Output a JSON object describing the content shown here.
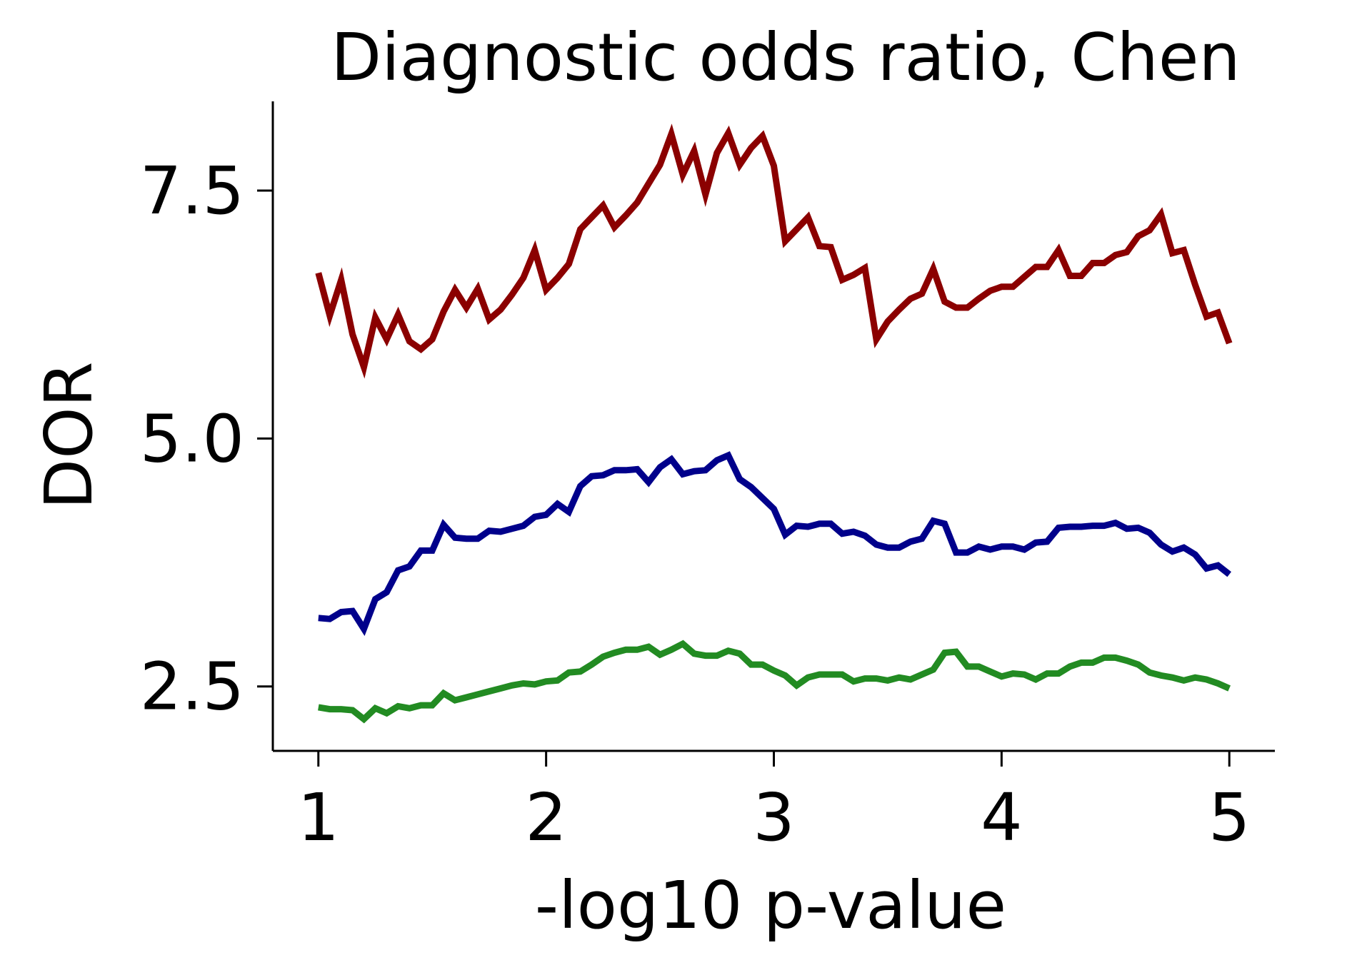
{
  "chart_data": {
    "type": "line",
    "title": "Diagnostic odds ratio, Chen",
    "xlabel": "-log10 p-value",
    "ylabel": "DOR",
    "xlim": [
      0.8,
      5.2
    ],
    "ylim": [
      1.85,
      8.4
    ],
    "xticks": [
      1,
      2,
      3,
      4,
      5
    ],
    "xtick_labels": [
      "1",
      "2",
      "3",
      "4",
      "5"
    ],
    "yticks": [
      2.5,
      5.0,
      7.5
    ],
    "ytick_labels": [
      "2.5",
      "5.0",
      "7.5"
    ],
    "grid": false,
    "legend": "none",
    "series": [
      {
        "color": "#8b0000",
        "points": [
          [
            1.0,
            6.67
          ],
          [
            1.05,
            6.24
          ],
          [
            1.1,
            6.6
          ],
          [
            1.15,
            6.05
          ],
          [
            1.2,
            5.72
          ],
          [
            1.25,
            6.22
          ],
          [
            1.3,
            6.0
          ],
          [
            1.35,
            6.25
          ],
          [
            1.4,
            5.98
          ],
          [
            1.45,
            5.9
          ],
          [
            1.5,
            6.0
          ],
          [
            1.55,
            6.28
          ],
          [
            1.6,
            6.5
          ],
          [
            1.65,
            6.32
          ],
          [
            1.7,
            6.51
          ],
          [
            1.75,
            6.2
          ],
          [
            1.8,
            6.3
          ],
          [
            1.85,
            6.45
          ],
          [
            1.9,
            6.62
          ],
          [
            1.95,
            6.9
          ],
          [
            2.0,
            6.5
          ],
          [
            2.05,
            6.62
          ],
          [
            2.1,
            6.76
          ],
          [
            2.15,
            7.11
          ],
          [
            2.2,
            7.23
          ],
          [
            2.25,
            7.35
          ],
          [
            2.3,
            7.13
          ],
          [
            2.35,
            7.25
          ],
          [
            2.4,
            7.38
          ],
          [
            2.45,
            7.57
          ],
          [
            2.5,
            7.76
          ],
          [
            2.55,
            8.07
          ],
          [
            2.6,
            7.66
          ],
          [
            2.65,
            7.9
          ],
          [
            2.7,
            7.46
          ],
          [
            2.75,
            7.88
          ],
          [
            2.8,
            8.08
          ],
          [
            2.85,
            7.76
          ],
          [
            2.9,
            7.93
          ],
          [
            2.95,
            8.05
          ],
          [
            3.0,
            7.75
          ],
          [
            3.05,
            6.99
          ],
          [
            3.1,
            7.11
          ],
          [
            3.15,
            7.23
          ],
          [
            3.2,
            6.94
          ],
          [
            3.25,
            6.93
          ],
          [
            3.3,
            6.6
          ],
          [
            3.35,
            6.65
          ],
          [
            3.4,
            6.72
          ],
          [
            3.45,
            6.0
          ],
          [
            3.5,
            6.18
          ],
          [
            3.55,
            6.3
          ],
          [
            3.6,
            6.41
          ],
          [
            3.65,
            6.46
          ],
          [
            3.7,
            6.71
          ],
          [
            3.75,
            6.38
          ],
          [
            3.8,
            6.32
          ],
          [
            3.85,
            6.32
          ],
          [
            3.9,
            6.41
          ],
          [
            3.95,
            6.49
          ],
          [
            4.0,
            6.53
          ],
          [
            4.05,
            6.53
          ],
          [
            4.1,
            6.63
          ],
          [
            4.15,
            6.73
          ],
          [
            4.2,
            6.73
          ],
          [
            4.25,
            6.9
          ],
          [
            4.3,
            6.64
          ],
          [
            4.35,
            6.64
          ],
          [
            4.4,
            6.77
          ],
          [
            4.45,
            6.77
          ],
          [
            4.5,
            6.85
          ],
          [
            4.55,
            6.88
          ],
          [
            4.6,
            7.04
          ],
          [
            4.65,
            7.1
          ],
          [
            4.7,
            7.26
          ],
          [
            4.75,
            6.87
          ],
          [
            4.8,
            6.9
          ],
          [
            4.85,
            6.55
          ],
          [
            4.9,
            6.23
          ],
          [
            4.95,
            6.27
          ],
          [
            5.0,
            5.96
          ]
        ]
      },
      {
        "color": "#00008b",
        "points": [
          [
            1.0,
            3.19
          ],
          [
            1.05,
            3.18
          ],
          [
            1.1,
            3.25
          ],
          [
            1.15,
            3.26
          ],
          [
            1.2,
            3.08
          ],
          [
            1.25,
            3.38
          ],
          [
            1.3,
            3.45
          ],
          [
            1.35,
            3.67
          ],
          [
            1.4,
            3.71
          ],
          [
            1.45,
            3.87
          ],
          [
            1.5,
            3.87
          ],
          [
            1.55,
            4.13
          ],
          [
            1.6,
            4.0
          ],
          [
            1.65,
            3.99
          ],
          [
            1.7,
            3.99
          ],
          [
            1.75,
            4.07
          ],
          [
            1.8,
            4.06
          ],
          [
            1.85,
            4.09
          ],
          [
            1.9,
            4.12
          ],
          [
            1.95,
            4.21
          ],
          [
            2.0,
            4.23
          ],
          [
            2.05,
            4.34
          ],
          [
            2.1,
            4.26
          ],
          [
            2.15,
            4.52
          ],
          [
            2.2,
            4.62
          ],
          [
            2.25,
            4.63
          ],
          [
            2.3,
            4.68
          ],
          [
            2.35,
            4.68
          ],
          [
            2.4,
            4.69
          ],
          [
            2.45,
            4.56
          ],
          [
            2.5,
            4.71
          ],
          [
            2.55,
            4.79
          ],
          [
            2.6,
            4.64
          ],
          [
            2.65,
            4.67
          ],
          [
            2.7,
            4.68
          ],
          [
            2.75,
            4.78
          ],
          [
            2.8,
            4.83
          ],
          [
            2.85,
            4.59
          ],
          [
            2.9,
            4.51
          ],
          [
            2.95,
            4.4
          ],
          [
            3.0,
            4.29
          ],
          [
            3.05,
            4.03
          ],
          [
            3.1,
            4.12
          ],
          [
            3.15,
            4.11
          ],
          [
            3.2,
            4.14
          ],
          [
            3.25,
            4.14
          ],
          [
            3.3,
            4.04
          ],
          [
            3.35,
            4.06
          ],
          [
            3.4,
            4.02
          ],
          [
            3.45,
            3.93
          ],
          [
            3.5,
            3.9
          ],
          [
            3.55,
            3.9
          ],
          [
            3.6,
            3.96
          ],
          [
            3.65,
            3.99
          ],
          [
            3.7,
            4.17
          ],
          [
            3.75,
            4.14
          ],
          [
            3.8,
            3.85
          ],
          [
            3.85,
            3.85
          ],
          [
            3.9,
            3.91
          ],
          [
            3.95,
            3.88
          ],
          [
            4.0,
            3.91
          ],
          [
            4.05,
            3.91
          ],
          [
            4.1,
            3.88
          ],
          [
            4.15,
            3.95
          ],
          [
            4.2,
            3.96
          ],
          [
            4.25,
            4.1
          ],
          [
            4.3,
            4.11
          ],
          [
            4.35,
            4.11
          ],
          [
            4.4,
            4.12
          ],
          [
            4.45,
            4.12
          ],
          [
            4.5,
            4.15
          ],
          [
            4.55,
            4.09
          ],
          [
            4.6,
            4.1
          ],
          [
            4.65,
            4.05
          ],
          [
            4.7,
            3.93
          ],
          [
            4.75,
            3.86
          ],
          [
            4.8,
            3.9
          ],
          [
            4.85,
            3.83
          ],
          [
            4.9,
            3.69
          ],
          [
            4.95,
            3.72
          ],
          [
            5.0,
            3.63
          ]
        ]
      },
      {
        "color": "#228b22",
        "points": [
          [
            1.0,
            2.29
          ],
          [
            1.05,
            2.27
          ],
          [
            1.1,
            2.27
          ],
          [
            1.15,
            2.26
          ],
          [
            1.2,
            2.17
          ],
          [
            1.25,
            2.28
          ],
          [
            1.3,
            2.23
          ],
          [
            1.35,
            2.3
          ],
          [
            1.4,
            2.28
          ],
          [
            1.45,
            2.31
          ],
          [
            1.5,
            2.31
          ],
          [
            1.55,
            2.43
          ],
          [
            1.6,
            2.36
          ],
          [
            1.65,
            2.39
          ],
          [
            1.7,
            2.42
          ],
          [
            1.75,
            2.45
          ],
          [
            1.8,
            2.48
          ],
          [
            1.85,
            2.51
          ],
          [
            1.9,
            2.53
          ],
          [
            1.95,
            2.52
          ],
          [
            2.0,
            2.55
          ],
          [
            2.05,
            2.56
          ],
          [
            2.1,
            2.64
          ],
          [
            2.15,
            2.65
          ],
          [
            2.2,
            2.72
          ],
          [
            2.25,
            2.8
          ],
          [
            2.3,
            2.84
          ],
          [
            2.35,
            2.87
          ],
          [
            2.4,
            2.87
          ],
          [
            2.45,
            2.9
          ],
          [
            2.5,
            2.82
          ],
          [
            2.55,
            2.87
          ],
          [
            2.6,
            2.93
          ],
          [
            2.65,
            2.83
          ],
          [
            2.7,
            2.81
          ],
          [
            2.75,
            2.81
          ],
          [
            2.8,
            2.86
          ],
          [
            2.85,
            2.83
          ],
          [
            2.9,
            2.72
          ],
          [
            2.95,
            2.72
          ],
          [
            3.0,
            2.66
          ],
          [
            3.05,
            2.61
          ],
          [
            3.1,
            2.51
          ],
          [
            3.15,
            2.59
          ],
          [
            3.2,
            2.62
          ],
          [
            3.25,
            2.62
          ],
          [
            3.3,
            2.62
          ],
          [
            3.35,
            2.55
          ],
          [
            3.4,
            2.58
          ],
          [
            3.45,
            2.58
          ],
          [
            3.5,
            2.56
          ],
          [
            3.55,
            2.59
          ],
          [
            3.6,
            2.57
          ],
          [
            3.65,
            2.62
          ],
          [
            3.7,
            2.67
          ],
          [
            3.75,
            2.84
          ],
          [
            3.8,
            2.85
          ],
          [
            3.85,
            2.7
          ],
          [
            3.9,
            2.7
          ],
          [
            3.95,
            2.65
          ],
          [
            4.0,
            2.6
          ],
          [
            4.05,
            2.63
          ],
          [
            4.1,
            2.62
          ],
          [
            4.15,
            2.57
          ],
          [
            4.2,
            2.63
          ],
          [
            4.25,
            2.63
          ],
          [
            4.3,
            2.7
          ],
          [
            4.35,
            2.74
          ],
          [
            4.4,
            2.74
          ],
          [
            4.45,
            2.79
          ],
          [
            4.5,
            2.79
          ],
          [
            4.55,
            2.76
          ],
          [
            4.6,
            2.72
          ],
          [
            4.65,
            2.64
          ],
          [
            4.7,
            2.61
          ],
          [
            4.75,
            2.59
          ],
          [
            4.8,
            2.56
          ],
          [
            4.85,
            2.59
          ],
          [
            4.9,
            2.57
          ],
          [
            4.95,
            2.53
          ],
          [
            5.0,
            2.48
          ]
        ]
      }
    ]
  }
}
